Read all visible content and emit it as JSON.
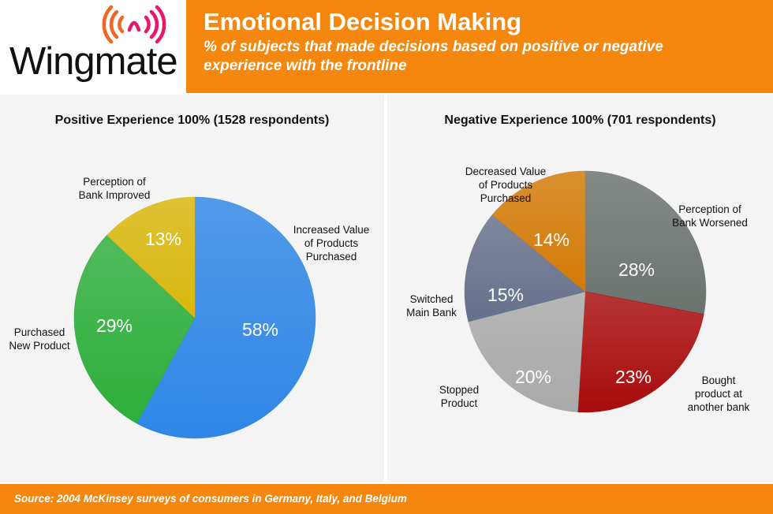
{
  "header": {
    "logo_text": "Wingmate",
    "title": "Emotional Decision Making",
    "subtitle": "% of subjects that made decisions based on positive or negative experience with the frontline"
  },
  "colors": {
    "orange": "#f5870f",
    "panel_bg": "#f4f4f4",
    "logo_orange": "#f26522",
    "logo_magenta": "#e8176b"
  },
  "chart_data": [
    {
      "type": "pie",
      "title": "Positive Experience 100% (1528 respondents)",
      "slices": [
        {
          "label": "Increased Value of Products Purchased",
          "value": 58,
          "value_label": "58%",
          "color": "#2f86e6"
        },
        {
          "label": "Purchased New Product",
          "value": 29,
          "value_label": "29%",
          "color": "#2dae3a"
        },
        {
          "label": "Perception of Bank Improved",
          "value": 13,
          "value_label": "13%",
          "color": "#d9b70c"
        }
      ]
    },
    {
      "type": "pie",
      "title": "Negative Experience 100% (701 respondents)",
      "slices": [
        {
          "label": "Perception of Bank Worsened",
          "value": 28,
          "value_label": "28%",
          "color": "#6b736f"
        },
        {
          "label": "Bought product at another bank",
          "value": 23,
          "value_label": "23%",
          "color": "#a80b0b"
        },
        {
          "label": "Stopped Product",
          "value": 20,
          "value_label": "20%",
          "color": "#a9a9a9"
        },
        {
          "label": "Switched Main Bank",
          "value": 15,
          "value_label": "15%",
          "color": "#66708a"
        },
        {
          "label": "Decreased Value of Products Purchased",
          "value": 14,
          "value_label": "14%",
          "color": "#d37a06"
        }
      ]
    }
  ],
  "footer": {
    "source": "Source: 2004 McKinsey surveys of consumers in Germany, Italy, and Belgium"
  }
}
